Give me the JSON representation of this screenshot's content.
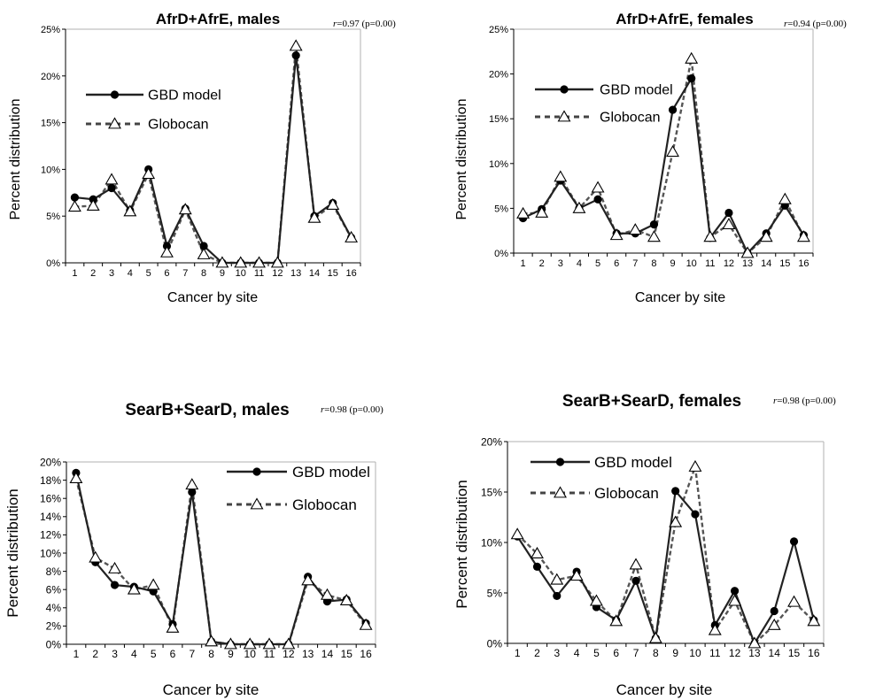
{
  "chart_data": [
    {
      "type": "line",
      "title": "AfrD+AfrE, males",
      "stat": "=0.97 (p=0.00)",
      "stat_symbol": "r",
      "xlabel": "Cancer by site",
      "ylabel": "Percent distribution",
      "categories": [
        "1",
        "2",
        "3",
        "4",
        "5",
        "6",
        "7",
        "8",
        "9",
        "10",
        "11",
        "12",
        "13",
        "14",
        "15",
        "16"
      ],
      "yticks": [
        "0%",
        "5%",
        "10%",
        "15%",
        "20%",
        "25%"
      ],
      "ylim": [
        0,
        25
      ],
      "legend_position": "top-left",
      "series": [
        {
          "name": "GBD model",
          "style": "solid",
          "marker": "circle",
          "values": [
            7.0,
            6.8,
            8.0,
            5.6,
            10.0,
            1.8,
            5.8,
            1.8,
            0.0,
            0.0,
            0.0,
            0.0,
            22.2,
            5.0,
            6.4,
            2.7
          ]
        },
        {
          "name": "Globocan",
          "style": "dashed",
          "marker": "triangle",
          "values": [
            6.0,
            6.1,
            8.9,
            5.5,
            9.5,
            1.1,
            5.7,
            0.9,
            0.0,
            0.0,
            0.0,
            0.0,
            23.2,
            4.8,
            6.2,
            2.7
          ]
        }
      ]
    },
    {
      "type": "line",
      "title": "AfrD+AfrE, females",
      "stat": "=0.94 (p=0.00)",
      "stat_symbol": "r",
      "xlabel": "Cancer by site",
      "ylabel": "Percent distribution",
      "categories": [
        "1",
        "2",
        "3",
        "4",
        "5",
        "6",
        "7",
        "8",
        "9",
        "10",
        "11",
        "12",
        "13",
        "14",
        "15",
        "16"
      ],
      "yticks": [
        "0%",
        "5%",
        "10%",
        "15%",
        "20%",
        "25%"
      ],
      "ylim": [
        0,
        25
      ],
      "legend_position": "top-left",
      "series": [
        {
          "name": "GBD model",
          "style": "solid",
          "marker": "circle",
          "values": [
            3.9,
            4.9,
            8.1,
            5.0,
            6.0,
            2.2,
            2.2,
            3.2,
            16.0,
            19.5,
            1.7,
            4.5,
            0.0,
            2.2,
            5.3,
            2.0
          ]
        },
        {
          "name": "Globocan",
          "style": "dashed",
          "marker": "triangle",
          "values": [
            4.4,
            4.5,
            8.5,
            5.0,
            7.3,
            2.0,
            2.6,
            1.8,
            11.3,
            21.7,
            1.8,
            3.2,
            0.0,
            1.8,
            6.0,
            1.8
          ]
        }
      ]
    },
    {
      "type": "line",
      "title": "SearB+SearD, males",
      "stat": "=0.98 (p=0.00)",
      "stat_symbol": "r",
      "xlabel": "Cancer by site",
      "ylabel": "Percent distribution",
      "categories": [
        "1",
        "2",
        "3",
        "4",
        "5",
        "6",
        "7",
        "8",
        "9",
        "10",
        "11",
        "12",
        "13",
        "14",
        "15",
        "16"
      ],
      "yticks": [
        "0%",
        "2%",
        "4%",
        "6%",
        "8%",
        "10%",
        "12%",
        "14%",
        "16%",
        "18%",
        "20%"
      ],
      "ylim": [
        0,
        20
      ],
      "legend_position": "top-right",
      "series": [
        {
          "name": "GBD model",
          "style": "solid",
          "marker": "circle",
          "values": [
            18.8,
            9.0,
            6.5,
            6.3,
            5.8,
            2.2,
            16.7,
            0.3,
            0.0,
            0.0,
            0.0,
            0.0,
            7.4,
            4.7,
            4.9,
            2.3
          ]
        },
        {
          "name": "Globocan",
          "style": "dashed",
          "marker": "triangle",
          "values": [
            18.2,
            9.5,
            8.3,
            6.0,
            6.5,
            1.8,
            17.5,
            0.3,
            0.0,
            0.0,
            0.0,
            0.0,
            7.0,
            5.4,
            4.8,
            2.1
          ]
        }
      ]
    },
    {
      "type": "line",
      "title": "SearB+SearD, females",
      "stat": "=0.98 (p=0.00)",
      "stat_symbol": "r",
      "xlabel": "Cancer by site",
      "ylabel": "Percent distribution",
      "categories": [
        "1",
        "2",
        "3",
        "4",
        "5",
        "6",
        "7",
        "8",
        "9",
        "10",
        "11",
        "12",
        "13",
        "14",
        "15",
        "16"
      ],
      "yticks": [
        "0%",
        "5%",
        "10%",
        "15%",
        "20%"
      ],
      "ylim": [
        0,
        20
      ],
      "legend_position": "top-left",
      "series": [
        {
          "name": "GBD model",
          "style": "solid",
          "marker": "circle",
          "values": [
            10.6,
            7.6,
            4.7,
            7.1,
            3.6,
            2.3,
            6.2,
            0.5,
            15.1,
            12.8,
            1.8,
            5.2,
            0.0,
            3.2,
            10.1,
            2.3
          ]
        },
        {
          "name": "Globocan",
          "style": "dashed",
          "marker": "triangle",
          "values": [
            10.8,
            8.9,
            6.3,
            6.7,
            4.2,
            2.2,
            7.8,
            0.5,
            12.0,
            17.5,
            1.3,
            4.2,
            0.0,
            1.8,
            4.1,
            2.2
          ]
        }
      ]
    }
  ]
}
